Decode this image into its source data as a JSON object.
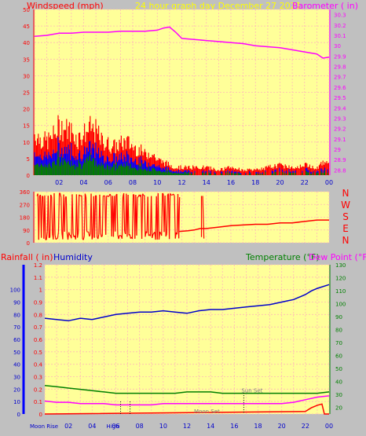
{
  "header": {
    "left_label": "Windspeed (mph)",
    "center_label": "24 hour graph day   December 27 2021",
    "right_label": "Barometer ( in)"
  },
  "lower_header": {
    "rain_label": "Rainfall ( in)",
    "humidity_label": "Humidity",
    "temp_label": "Temperature (°F)",
    "dew_label": "Dew Point (°F)"
  },
  "colors": {
    "plot_bg": "#ffff99",
    "grid": "#ffb8b8",
    "wind": "#ff0000",
    "gust_mid": "#0000ff",
    "gust_low": "#008000",
    "baro": "#ff00ff",
    "direction": "#ff0000",
    "humidity": "#0000cc",
    "temperature": "#008000",
    "dewpoint": "#ff00ff",
    "rain": "#ff0000"
  },
  "chart_data": [
    {
      "type": "line",
      "x_ticks": [
        "02",
        "04",
        "06",
        "08",
        "10",
        "12",
        "14",
        "16",
        "18",
        "20",
        "22",
        "00"
      ],
      "wind_axis": {
        "ticks": [
          "50",
          "45",
          "40",
          "35",
          "30",
          "25",
          "20",
          "15",
          "10",
          "5",
          "0"
        ],
        "ylim": [
          0,
          50
        ]
      },
      "baro_axis": {
        "ticks": [
          "30.3",
          "30.2",
          "30.1",
          "30",
          "29.9",
          "29.8",
          "29.7",
          "29.6",
          "29.5",
          "29.4",
          "29.3",
          "29.2",
          "29.1",
          "29",
          "28.9",
          "28.8"
        ],
        "ylim": [
          28.75,
          30.35
        ]
      },
      "barometer": {
        "x": [
          0,
          1,
          2,
          3,
          4,
          5,
          6,
          7,
          8,
          9,
          10,
          10.5,
          11,
          11.5,
          12,
          13,
          14,
          15,
          16,
          17,
          18,
          19,
          20,
          21,
          22,
          23,
          23.5,
          24
        ],
        "y": [
          30.09,
          30.1,
          30.12,
          30.12,
          30.13,
          30.13,
          30.13,
          30.14,
          30.14,
          30.14,
          30.15,
          30.17,
          30.18,
          30.13,
          30.07,
          30.06,
          30.05,
          30.04,
          30.03,
          30.02,
          30.0,
          29.99,
          29.98,
          29.96,
          29.94,
          29.92,
          29.88,
          29.89
        ]
      },
      "wind_envelope": {
        "x": [
          0,
          0.5,
          1,
          1.5,
          2,
          2.5,
          3,
          3.5,
          4,
          4.5,
          5,
          5.5,
          6,
          6.5,
          7,
          7.5,
          8,
          8.5,
          9,
          9.5,
          10,
          10.5,
          11,
          11.5,
          12,
          13,
          14,
          15,
          16,
          17,
          18,
          19,
          20,
          21,
          22,
          23,
          23.5,
          24
        ],
        "y": [
          16,
          14,
          13,
          15,
          19,
          18,
          17,
          14,
          16,
          18,
          17,
          13,
          12,
          11,
          12,
          13,
          11,
          10,
          8,
          9,
          6,
          5,
          4,
          3,
          3,
          3,
          3,
          2,
          3,
          2,
          2,
          3,
          4,
          3,
          4,
          3,
          5,
          4
        ]
      }
    },
    {
      "type": "line",
      "direction_labels": [
        "N",
        "W",
        "S",
        "E",
        "N"
      ],
      "axis": {
        "ticks": [
          "360",
          "270",
          "180",
          "90",
          "0"
        ],
        "ylim": [
          0,
          360
        ]
      },
      "x": [
        11.8,
        12.5,
        13,
        13.5,
        14,
        15,
        16,
        17,
        18,
        19,
        20,
        21,
        22,
        23,
        24
      ],
      "y": [
        80,
        85,
        90,
        100,
        100,
        110,
        120,
        125,
        130,
        130,
        140,
        140,
        150,
        160,
        160
      ]
    },
    {
      "type": "line",
      "rain_axis": {
        "ticks": [
          "1.2",
          "1.1",
          "1",
          "0.9",
          "0.8",
          "0.7",
          "0.6",
          "0.5",
          "0.4",
          "0.3",
          "0.2",
          "0.1",
          "0"
        ],
        "ylim": [
          0,
          1.2
        ]
      },
      "humidity_axis": {
        "ticks": [
          "100",
          "90",
          "80",
          "70",
          "60",
          "50",
          "40",
          "30",
          "20",
          "10",
          "0"
        ],
        "ylim": [
          0,
          100
        ]
      },
      "temp_axis": {
        "ticks": [
          "130",
          "120",
          "110",
          "100",
          "90",
          "80",
          "70",
          "60",
          "50",
          "40",
          "30",
          "20"
        ],
        "ylim": [
          15,
          130
        ]
      },
      "x_ticks": [
        "02",
        "04",
        "06",
        "08",
        "10",
        "12",
        "14",
        "16",
        "18",
        "20",
        "22",
        "00"
      ],
      "humidity": {
        "x": [
          0,
          1,
          2,
          3,
          4,
          5,
          6,
          7,
          8,
          9,
          10,
          11,
          12,
          13,
          14,
          15,
          16,
          17,
          18,
          19,
          20,
          21,
          22,
          22.5,
          23,
          24
        ],
        "y": [
          77,
          76,
          75,
          77,
          76,
          78,
          80,
          81,
          82,
          82,
          83,
          82,
          81,
          83,
          84,
          84,
          85,
          86,
          87,
          88,
          90,
          92,
          96,
          99,
          101,
          104
        ]
      },
      "temperature": {
        "x": [
          0,
          1,
          2,
          3,
          4,
          5,
          6,
          7,
          8,
          9,
          10,
          11,
          12,
          13,
          14,
          15,
          16,
          17,
          18,
          19,
          20,
          21,
          22,
          23,
          24
        ],
        "y": [
          37,
          36,
          35,
          34,
          33,
          32,
          31,
          31,
          31,
          31,
          31,
          31,
          32,
          32,
          32,
          31,
          31,
          31,
          31,
          31,
          31,
          31,
          31,
          31,
          32
        ]
      },
      "dewpoint": {
        "x": [
          0,
          1,
          2,
          3,
          4,
          5,
          6,
          7,
          8,
          9,
          10,
          11,
          12,
          13,
          14,
          15,
          16,
          17,
          18,
          19,
          20,
          21,
          22,
          23,
          24
        ],
        "y": [
          25,
          24,
          24,
          23,
          23,
          23,
          22,
          22,
          22,
          22,
          23,
          23,
          23,
          23,
          23,
          23,
          23,
          23,
          23,
          23,
          23,
          24,
          26,
          28,
          29
        ]
      },
      "rain": {
        "x": [
          0,
          22,
          22.5,
          23,
          23.4,
          23.6,
          24
        ],
        "y": [
          0,
          0.02,
          0.05,
          0.07,
          0.08,
          0,
          0
        ]
      },
      "annotations": [
        {
          "text": "Moon Rise",
          "x": 0.6
        },
        {
          "text": "High",
          "x": 5.2
        },
        {
          "text": "Moon Set",
          "x": 12.6
        },
        {
          "text": "Sun Set",
          "x": 16.6
        }
      ]
    }
  ]
}
